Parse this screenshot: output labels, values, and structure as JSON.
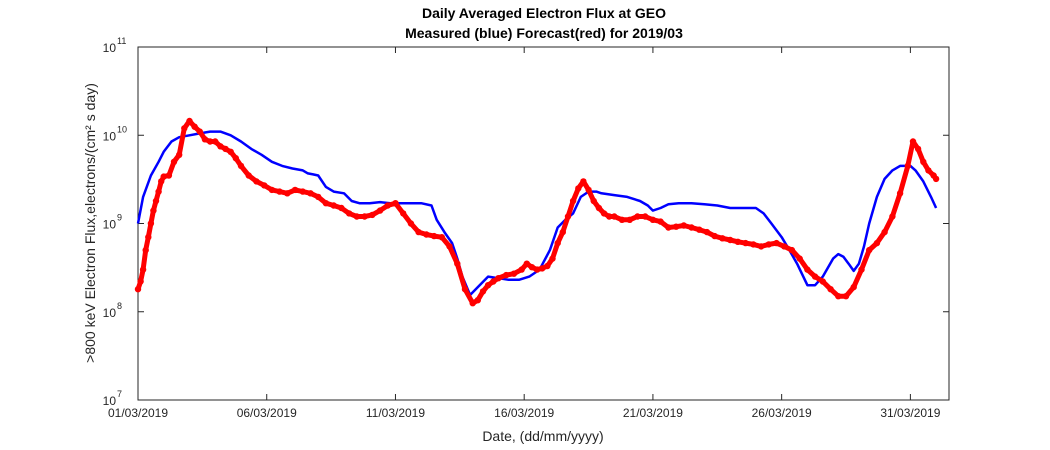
{
  "chart_data": {
    "type": "line",
    "title": "Daily Averaged Electron Flux at GEO",
    "subtitle": "Measured (blue) Forecast(red) for 2019/03",
    "xlabel": "Date, (dd/mm/yyyy)",
    "ylabel": ">800 keV Electron Flux,electrons/(cm² s day)",
    "xlim": [
      1,
      32.5
    ],
    "ylim": [
      10000000.0,
      100000000000.0
    ],
    "yscale": "log",
    "grid": false,
    "x_ticks": [
      1,
      6,
      11,
      16,
      21,
      26,
      31
    ],
    "x_tick_labels": [
      "01/03/2019",
      "06/03/2019",
      "11/03/2019",
      "16/03/2019",
      "21/03/2019",
      "26/03/2019",
      "31/03/2019"
    ],
    "y_ticks": [
      10000000.0,
      100000000.0,
      1000000000.0,
      10000000000.0,
      100000000000.0
    ],
    "y_tick_labels": [
      {
        "base": "10",
        "exp": "7"
      },
      {
        "base": "10",
        "exp": "8"
      },
      {
        "base": "10",
        "exp": "9"
      },
      {
        "base": "10",
        "exp": "10"
      },
      {
        "base": "10",
        "exp": "11"
      }
    ],
    "series": [
      {
        "color": "#0000ff",
        "style": "line",
        "x": [
          1.0,
          1.2,
          1.5,
          1.8,
          2.0,
          2.3,
          2.6,
          3.0,
          3.4,
          3.8,
          4.2,
          4.6,
          5.0,
          5.4,
          5.8,
          6.2,
          6.6,
          7.0,
          7.4,
          7.6,
          7.8,
          8.0,
          8.3,
          8.6,
          9.0,
          9.3,
          9.6,
          10.0,
          10.4,
          10.8,
          11.2,
          11.6,
          12.0,
          12.4,
          12.6,
          12.9,
          13.2,
          13.4,
          13.6,
          13.9,
          14.2,
          14.6,
          15.0,
          15.4,
          15.8,
          16.2,
          16.6,
          17.0,
          17.3,
          17.6,
          17.9,
          18.2,
          18.5,
          18.8,
          19.0,
          19.5,
          20.0,
          20.5,
          20.8,
          21.0,
          21.3,
          21.6,
          22.0,
          22.5,
          23.0,
          23.5,
          24.0,
          24.5,
          25.0,
          25.3,
          25.6,
          26.0,
          26.3,
          26.6,
          27.0,
          27.3,
          27.6,
          28.0,
          28.2,
          28.4,
          28.6,
          28.8,
          29.0,
          29.2,
          29.4,
          29.7,
          30.0,
          30.3,
          30.6,
          31.0,
          31.2,
          31.5,
          31.8,
          32.0
        ],
        "y": [
          1000000000.0,
          2000000000.0,
          3500000000.0,
          5000000000.0,
          6500000000.0,
          8500000000.0,
          9500000000.0,
          10000000000.0,
          10500000000.0,
          11000000000.0,
          11000000000.0,
          10000000000.0,
          8500000000.0,
          7000000000.0,
          6000000000.0,
          5000000000.0,
          4500000000.0,
          4200000000.0,
          4000000000.0,
          3700000000.0,
          3600000000.0,
          3500000000.0,
          2600000000.0,
          2300000000.0,
          2200000000.0,
          1800000000.0,
          1700000000.0,
          1700000000.0,
          1750000000.0,
          1700000000.0,
          1700000000.0,
          1700000000.0,
          1700000000.0,
          1600000000.0,
          1100000000.0,
          800000000.0,
          600000000.0,
          400000000.0,
          250000000.0,
          155000000.0,
          190000000.0,
          250000000.0,
          240000000.0,
          230000000.0,
          230000000.0,
          250000000.0,
          300000000.0,
          500000000.0,
          900000000.0,
          1100000000.0,
          1300000000.0,
          2000000000.0,
          2300000000.0,
          2300000000.0,
          2200000000.0,
          2100000000.0,
          2000000000.0,
          1800000000.0,
          1600000000.0,
          1400000000.0,
          1500000000.0,
          1650000000.0,
          1700000000.0,
          1700000000.0,
          1650000000.0,
          1600000000.0,
          1500000000.0,
          1500000000.0,
          1500000000.0,
          1300000000.0,
          1000000000.0,
          700000000.0,
          500000000.0,
          350000000.0,
          200000000.0,
          200000000.0,
          250000000.0,
          400000000.0,
          450000000.0,
          420000000.0,
          350000000.0,
          290000000.0,
          350000000.0,
          550000000.0,
          1000000000.0,
          2000000000.0,
          3200000000.0,
          4000000000.0,
          4500000000.0,
          4500000000.0,
          4000000000.0,
          3000000000.0,
          2000000000.0,
          1500000000.0
        ]
      },
      {
        "color": "#ff0000",
        "style": "dots",
        "x": [
          1.0,
          1.1,
          1.2,
          1.3,
          1.4,
          1.5,
          1.6,
          1.7,
          1.8,
          1.9,
          2.0,
          2.2,
          2.4,
          2.6,
          2.8,
          3.0,
          3.2,
          3.4,
          3.6,
          3.8,
          4.0,
          4.2,
          4.4,
          4.6,
          4.8,
          5.0,
          5.3,
          5.6,
          5.9,
          6.2,
          6.5,
          6.8,
          7.1,
          7.4,
          7.7,
          8.0,
          8.3,
          8.6,
          8.9,
          9.2,
          9.5,
          9.8,
          10.1,
          10.4,
          10.7,
          11.0,
          11.3,
          11.6,
          11.9,
          12.2,
          12.5,
          12.8,
          13.1,
          13.4,
          13.7,
          14.0,
          14.2,
          14.4,
          14.6,
          14.8,
          15.0,
          15.3,
          15.6,
          15.9,
          16.1,
          16.3,
          16.5,
          16.7,
          16.9,
          17.1,
          17.3,
          17.5,
          17.7,
          17.9,
          18.1,
          18.3,
          18.5,
          18.7,
          18.9,
          19.1,
          19.3,
          19.5,
          19.8,
          20.1,
          20.4,
          20.7,
          21.0,
          21.3,
          21.6,
          21.9,
          22.2,
          22.5,
          22.8,
          23.1,
          23.4,
          23.7,
          24.0,
          24.3,
          24.6,
          24.9,
          25.2,
          25.5,
          25.8,
          26.1,
          26.4,
          26.7,
          27.0,
          27.3,
          27.6,
          27.9,
          28.2,
          28.5,
          28.8,
          29.1,
          29.4,
          29.7,
          30.0,
          30.3,
          30.6,
          30.9,
          31.1,
          31.3,
          31.5,
          31.7,
          31.9,
          32.0
        ],
        "y": [
          180000000.0,
          220000000.0,
          300000000.0,
          500000000.0,
          700000000.0,
          1000000000.0,
          1400000000.0,
          1800000000.0,
          2300000000.0,
          3000000000.0,
          3400000000.0,
          3500000000.0,
          5000000000.0,
          6000000000.0,
          12000000000.0,
          14500000000.0,
          12500000000.0,
          11000000000.0,
          9000000000.0,
          8500000000.0,
          8500000000.0,
          7500000000.0,
          7000000000.0,
          6500000000.0,
          5500000000.0,
          4500000000.0,
          3500000000.0,
          3000000000.0,
          2700000000.0,
          2400000000.0,
          2300000000.0,
          2200000000.0,
          2400000000.0,
          2300000000.0,
          2200000000.0,
          2000000000.0,
          1700000000.0,
          1600000000.0,
          1500000000.0,
          1300000000.0,
          1200000000.0,
          1200000000.0,
          1250000000.0,
          1400000000.0,
          1600000000.0,
          1700000000.0,
          1300000000.0,
          1000000000.0,
          800000000.0,
          750000000.0,
          720000000.0,
          700000000.0,
          550000000.0,
          350000000.0,
          180000000.0,
          125000000.0,
          135000000.0,
          170000000.0,
          200000000.0,
          220000000.0,
          240000000.0,
          260000000.0,
          270000000.0,
          300000000.0,
          350000000.0,
          320000000.0,
          300000000.0,
          310000000.0,
          330000000.0,
          400000000.0,
          600000000.0,
          800000000.0,
          1200000000.0,
          1800000000.0,
          2500000000.0,
          3000000000.0,
          2400000000.0,
          1800000000.0,
          1500000000.0,
          1300000000.0,
          1200000000.0,
          1200000000.0,
          1100000000.0,
          1100000000.0,
          1200000000.0,
          1200000000.0,
          1100000000.0,
          1050000000.0,
          900000000.0,
          920000000.0,
          950000000.0,
          900000000.0,
          850000000.0,
          800000000.0,
          720000000.0,
          680000000.0,
          650000000.0,
          620000000.0,
          600000000.0,
          580000000.0,
          550000000.0,
          580000000.0,
          600000000.0,
          550000000.0,
          500000000.0,
          400000000.0,
          300000000.0,
          250000000.0,
          220000000.0,
          180000000.0,
          150000000.0,
          150000000.0,
          190000000.0,
          300000000.0,
          500000000.0,
          600000000.0,
          800000000.0,
          1200000000.0,
          2200000000.0,
          4500000000.0,
          8500000000.0,
          7000000000.0,
          5000000000.0,
          4000000000.0,
          3500000000.0,
          3200000000.0
        ]
      }
    ]
  }
}
